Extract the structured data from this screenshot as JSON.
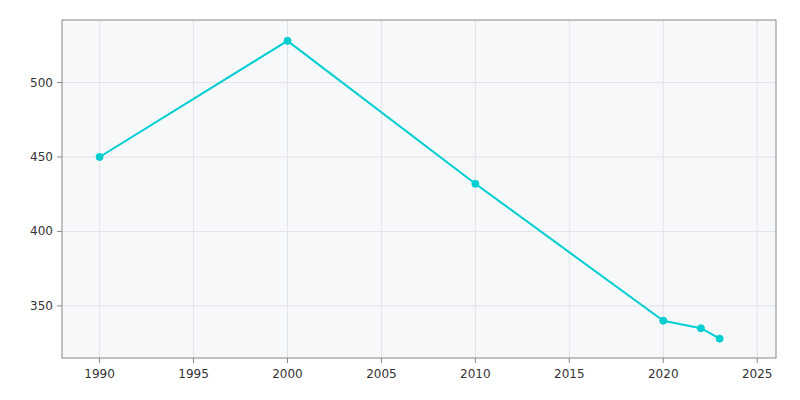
{
  "chart_data": {
    "type": "line",
    "x": [
      1990,
      2000,
      2010,
      2020,
      2022,
      2023
    ],
    "values": [
      450,
      528,
      432,
      340,
      335,
      328
    ],
    "color": "#00CED1",
    "marker": "circle",
    "xlim": [
      1988,
      2026
    ],
    "ylim": [
      315,
      542
    ],
    "xticks": [
      1990,
      1995,
      2000,
      2005,
      2010,
      2015,
      2020,
      2025
    ],
    "yticks": [
      350,
      400,
      450,
      500
    ],
    "grid": true
  }
}
